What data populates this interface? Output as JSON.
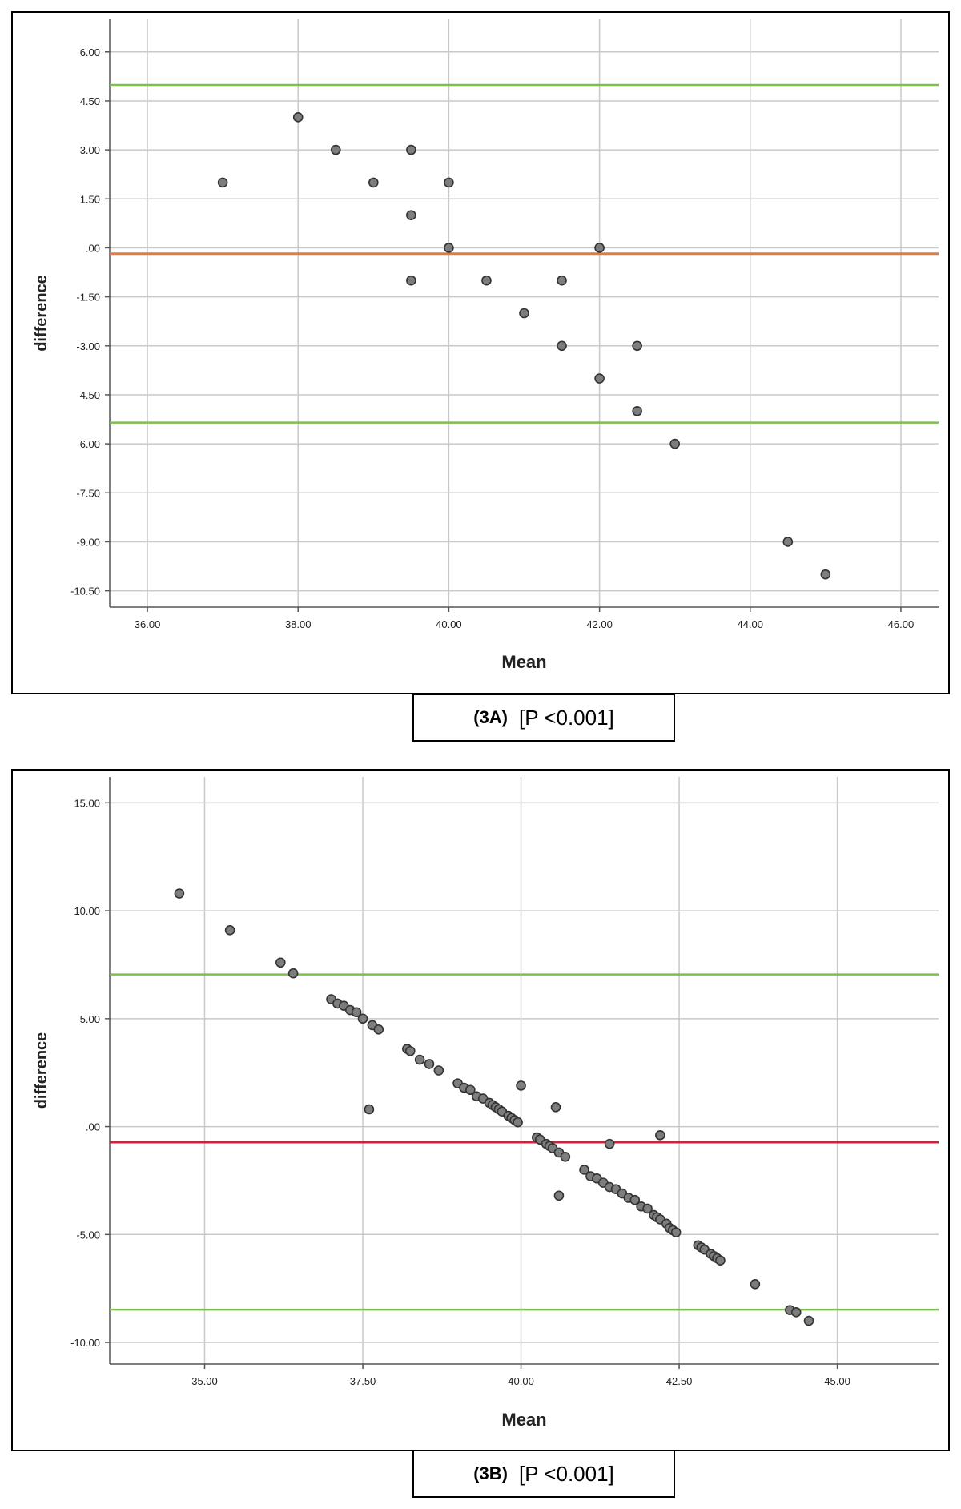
{
  "chart_data": [
    {
      "type": "scatter",
      "xlabel": "Mean",
      "ylabel": "difference",
      "xlim": [
        35.5,
        46.5
      ],
      "ylim": [
        -11.0,
        7.0
      ],
      "xticks": [
        36,
        38,
        40,
        42,
        44,
        46
      ],
      "xtick_labels": [
        "36.00",
        "38.00",
        "40.00",
        "42.00",
        "44.00",
        "46.00"
      ],
      "yticks": [
        6,
        4.5,
        3,
        1.5,
        0,
        -1.5,
        -3,
        -4.5,
        -6,
        -7.5,
        -9,
        -10.5
      ],
      "ytick_labels": [
        "6.00",
        "4.50",
        "3.00",
        "1.50",
        ".00",
        "-1.50",
        "-3.00",
        "-4.50",
        "-6.00",
        "-7.50",
        "-9.00",
        "-10.50"
      ],
      "grid": true,
      "points": [
        [
          37,
          2
        ],
        [
          38,
          4
        ],
        [
          38.5,
          3
        ],
        [
          39,
          2
        ],
        [
          39.5,
          3
        ],
        [
          39.5,
          1
        ],
        [
          39.5,
          -1
        ],
        [
          40,
          2
        ],
        [
          40,
          0
        ],
        [
          40.5,
          -1
        ],
        [
          41,
          -2
        ],
        [
          41.5,
          -1
        ],
        [
          41.5,
          -3
        ],
        [
          42,
          0
        ],
        [
          42,
          -4
        ],
        [
          42.5,
          -3
        ],
        [
          42.5,
          -5
        ],
        [
          43,
          -6
        ],
        [
          44.5,
          -9
        ],
        [
          45,
          -10
        ]
      ],
      "mean_line": -0.18,
      "upper_loa": 4.99,
      "lower_loa": -5.35,
      "line_colors": {
        "mean": "#e8793a",
        "limits": "#7cc04a"
      },
      "point_color": "#7d7d7d"
    },
    {
      "type": "scatter",
      "xlabel": "Mean",
      "ylabel": "difference",
      "xlim": [
        33.5,
        46.6
      ],
      "ylim": [
        -11.0,
        16.2
      ],
      "xticks": [
        35,
        37.5,
        40,
        42.5,
        45
      ],
      "xtick_labels": [
        "35.00",
        "37.50",
        "40.00",
        "42.50",
        "45.00"
      ],
      "yticks": [
        15,
        10,
        5,
        0,
        -5,
        -10
      ],
      "ytick_labels": [
        "15.00",
        "10.00",
        "5.00",
        ".00",
        "-5.00",
        "-10.00"
      ],
      "grid": true,
      "points": [
        [
          34.6,
          10.8
        ],
        [
          35.4,
          9.1
        ],
        [
          36.2,
          7.6
        ],
        [
          36.4,
          7.1
        ],
        [
          37.0,
          5.9
        ],
        [
          37.1,
          5.7
        ],
        [
          37.2,
          5.6
        ],
        [
          37.3,
          5.4
        ],
        [
          37.4,
          5.3
        ],
        [
          37.5,
          5.0
        ],
        [
          37.65,
          4.7
        ],
        [
          37.75,
          4.5
        ],
        [
          37.6,
          0.8
        ],
        [
          38.2,
          3.6
        ],
        [
          38.25,
          3.5
        ],
        [
          38.4,
          3.1
        ],
        [
          38.55,
          2.9
        ],
        [
          38.7,
          2.6
        ],
        [
          39.0,
          2.0
        ],
        [
          39.1,
          1.8
        ],
        [
          39.2,
          1.7
        ],
        [
          39.3,
          1.4
        ],
        [
          39.4,
          1.3
        ],
        [
          39.5,
          1.1
        ],
        [
          39.55,
          1.0
        ],
        [
          39.6,
          0.9
        ],
        [
          39.65,
          0.8
        ],
        [
          39.7,
          0.7
        ],
        [
          39.8,
          0.5
        ],
        [
          39.85,
          0.4
        ],
        [
          39.9,
          0.3
        ],
        [
          39.95,
          0.2
        ],
        [
          40.0,
          1.9
        ],
        [
          40.25,
          -0.5
        ],
        [
          40.3,
          -0.6
        ],
        [
          40.4,
          -0.8
        ],
        [
          40.45,
          -0.9
        ],
        [
          40.5,
          -1.0
        ],
        [
          40.55,
          0.9
        ],
        [
          40.6,
          -1.2
        ],
        [
          40.7,
          -1.4
        ],
        [
          40.6,
          -3.2
        ],
        [
          41.0,
          -2.0
        ],
        [
          41.1,
          -2.3
        ],
        [
          41.2,
          -2.4
        ],
        [
          41.3,
          -2.6
        ],
        [
          41.4,
          -2.8
        ],
        [
          41.4,
          -0.8
        ],
        [
          41.5,
          -2.9
        ],
        [
          41.6,
          -3.1
        ],
        [
          41.7,
          -3.3
        ],
        [
          41.8,
          -3.4
        ],
        [
          41.9,
          -3.7
        ],
        [
          42.0,
          -3.8
        ],
        [
          42.1,
          -4.1
        ],
        [
          42.15,
          -4.2
        ],
        [
          42.2,
          -4.3
        ],
        [
          42.2,
          -0.4
        ],
        [
          42.3,
          -4.5
        ],
        [
          42.35,
          -4.7
        ],
        [
          42.4,
          -4.8
        ],
        [
          42.45,
          -4.9
        ],
        [
          42.8,
          -5.5
        ],
        [
          42.85,
          -5.6
        ],
        [
          42.9,
          -5.7
        ],
        [
          43.0,
          -5.9
        ],
        [
          43.05,
          -6.0
        ],
        [
          43.1,
          -6.1
        ],
        [
          43.15,
          -6.2
        ],
        [
          43.7,
          -7.3
        ],
        [
          44.25,
          -8.5
        ],
        [
          44.35,
          -8.6
        ],
        [
          44.55,
          -9.0
        ]
      ],
      "mean_line": -0.72,
      "upper_loa": 7.05,
      "lower_loa": -8.48,
      "line_colors": {
        "mean": "#c8243b",
        "limits": "#7cc04a"
      },
      "point_color": "#7d7d7d"
    }
  ],
  "captions": [
    {
      "tag": "(3A)",
      "text": "[P <0.001]"
    },
    {
      "tag": "(3B)",
      "text": "[P <0.001]"
    }
  ]
}
